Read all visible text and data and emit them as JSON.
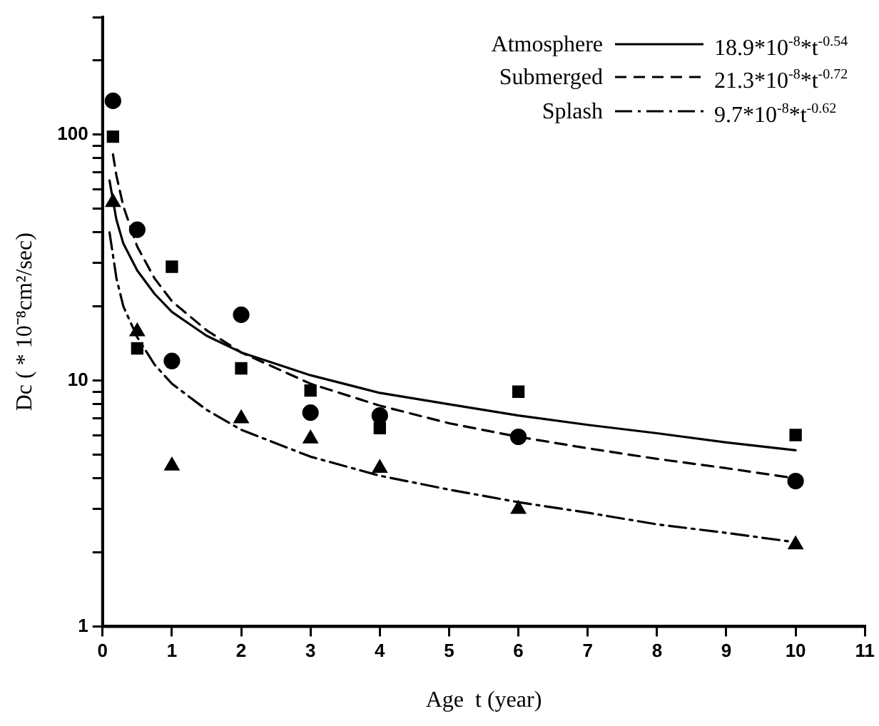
{
  "chart_data": {
    "type": "line",
    "xlabel": "Age  t (year)",
    "ylabel": "Dc ( * 10⁻⁸cm²/sec)",
    "xlim": [
      0,
      11
    ],
    "xticks": [
      0,
      1,
      2,
      3,
      4,
      5,
      6,
      7,
      8,
      9,
      10,
      11
    ],
    "ylim": [
      1,
      300
    ],
    "yticks": [
      1,
      {
        "value": 2,
        "label": null
      },
      {
        "value": 3,
        "label": null
      },
      {
        "value": 4,
        "label": null
      },
      {
        "value": 5,
        "label": null
      },
      {
        "value": 6,
        "label": null
      },
      {
        "value": 7,
        "label": null
      },
      {
        "value": 8,
        "label": null
      },
      {
        "value": 9,
        "label": null
      },
      10,
      {
        "value": 20,
        "label": null
      },
      {
        "value": 30,
        "label": null
      },
      {
        "value": 40,
        "label": null
      },
      {
        "value": 50,
        "label": null
      },
      {
        "value": 60,
        "label": null
      },
      {
        "value": 70,
        "label": null
      },
      {
        "value": 80,
        "label": null
      },
      {
        "value": 90,
        "label": null
      },
      100,
      {
        "value": 200,
        "label": null
      },
      {
        "value": 300,
        "label": null
      }
    ],
    "log": "y",
    "grid": false,
    "legend": "top right",
    "annotations": [
      "18.9*10$^{-8}$*t$^{-0.54}$",
      "21.3*10$^{-8}$*t$^{-0.72}$",
      "9.7*10$^{-8}$*t$^{-0.62}$"
    ],
    "series": [
      {
        "name": "Atmosphere",
        "type": "line",
        "color": "#000000",
        "line_style": "solid",
        "marker": "none",
        "x": [
          0.1,
          0.2,
          0.3,
          0.5,
          0.75,
          1,
          1.5,
          2,
          3,
          4,
          5,
          6,
          7,
          8,
          9,
          10
        ],
        "values": [
          65,
          45,
          36,
          28,
          22.5,
          19,
          15.2,
          13,
          10.5,
          8.9,
          8,
          7.2,
          6.6,
          6.1,
          5.6,
          5.2
        ]
      },
      {
        "name": "Submerged",
        "type": "line",
        "color": "#000000",
        "line_style": "dashed",
        "marker": "none",
        "x": [
          0.15,
          0.2,
          0.3,
          0.5,
          0.75,
          1,
          1.5,
          2,
          3,
          4,
          5,
          6,
          7,
          8,
          9,
          10
        ],
        "values": [
          83,
          68,
          51,
          35,
          26,
          21,
          16,
          13,
          9.7,
          7.9,
          6.7,
          5.9,
          5.3,
          4.8,
          4.4,
          4
        ]
      },
      {
        "name": "Splash",
        "type": "line",
        "color": "#000000",
        "line_style": "dotted",
        "marker": "none",
        "x": [
          0.1,
          0.2,
          0.3,
          0.5,
          0.75,
          1,
          1.5,
          2,
          3,
          4,
          5,
          6,
          7,
          8,
          9,
          10
        ],
        "values": [
          40,
          26,
          20,
          15,
          11.6,
          9.7,
          7.6,
          6.3,
          4.9,
          4.1,
          3.6,
          3.2,
          2.9,
          2.6,
          2.4,
          2.2
        ]
      },
      {
        "type": "scatter",
        "color": "#000000",
        "marker": "circle",
        "x": [
          0.15,
          0.5,
          1,
          2,
          3,
          4,
          6,
          10
        ],
        "values": [
          137,
          41,
          12,
          18.5,
          7.4,
          7.2,
          5.9,
          3.9
        ]
      },
      {
        "type": "scatter",
        "color": "#000000",
        "marker": "square",
        "x": [
          0.15,
          0.5,
          1,
          2,
          3,
          4,
          6,
          10
        ],
        "values": [
          98,
          13.5,
          29,
          11.2,
          9.1,
          6.4,
          9,
          6
        ]
      },
      {
        "type": "scatter",
        "color": "#000000",
        "marker": "triangle",
        "x": [
          0.15,
          0.5,
          1,
          2,
          3,
          4,
          6,
          10
        ],
        "values": [
          53,
          15.8,
          4.5,
          7,
          5.8,
          4.4,
          3,
          2.15
        ]
      }
    ]
  }
}
